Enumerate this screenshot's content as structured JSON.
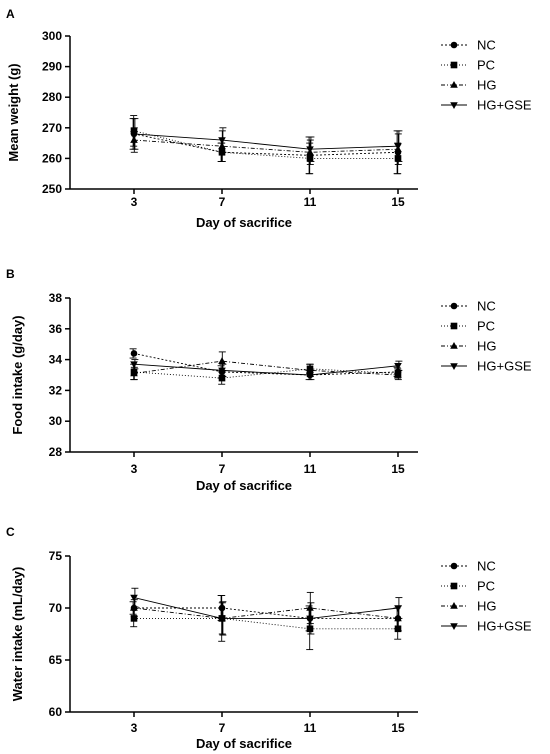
{
  "chart_data": [
    {
      "panel": "A",
      "type": "line",
      "xlabel": "Day of sacrifice",
      "ylabel": "Mean weight (g)",
      "ylim": [
        250,
        300
      ],
      "yticks": [
        250,
        260,
        270,
        280,
        290,
        300
      ],
      "x": [
        3,
        7,
        11,
        15
      ],
      "xtick_labels": [
        "3",
        "7",
        "11",
        "15"
      ],
      "legend_position": "right",
      "series": [
        {
          "name": "NC",
          "marker": "circle",
          "dash": "2,2",
          "values": [
            268,
            262,
            261,
            262
          ],
          "errors": [
            5,
            3,
            6,
            7
          ]
        },
        {
          "name": "PC",
          "marker": "square",
          "dash": "1,2",
          "values": [
            269,
            262,
            260,
            260
          ],
          "errors": [
            5,
            3,
            5,
            5
          ]
        },
        {
          "name": "HG",
          "marker": "triangle-up",
          "dash": "4,2,1,2",
          "values": [
            266,
            264,
            262,
            263
          ],
          "errors": [
            4,
            5,
            4,
            5
          ]
        },
        {
          "name": "HG+GSE",
          "marker": "triangle-down",
          "dash": "",
          "values": [
            268,
            266,
            263,
            264
          ],
          "errors": [
            5,
            4,
            4,
            5
          ]
        }
      ]
    },
    {
      "panel": "B",
      "type": "line",
      "xlabel": "Day of sacrifice",
      "ylabel": "Food intake (g/day)",
      "ylim": [
        28,
        38
      ],
      "yticks": [
        28,
        30,
        32,
        34,
        36,
        38
      ],
      "x": [
        3,
        7,
        11,
        15
      ],
      "xtick_labels": [
        "3",
        "7",
        "11",
        "15"
      ],
      "legend_position": "right",
      "series": [
        {
          "name": "NC",
          "marker": "circle",
          "dash": "2,2",
          "values": [
            34.4,
            33.2,
            33.0,
            33.2
          ],
          "errors": [
            0.3,
            0.4,
            0.3,
            0.3
          ]
        },
        {
          "name": "PC",
          "marker": "square",
          "dash": "1,2",
          "values": [
            33.2,
            32.8,
            33.4,
            33.1
          ],
          "errors": [
            0.5,
            0.4,
            0.3,
            0.3
          ]
        },
        {
          "name": "HG",
          "marker": "triangle-up",
          "dash": "4,2,1,2",
          "values": [
            33.1,
            33.9,
            33.3,
            33.0
          ],
          "errors": [
            0.4,
            0.6,
            0.4,
            0.3
          ]
        },
        {
          "name": "HG+GSE",
          "marker": "triangle-down",
          "dash": "",
          "values": [
            33.7,
            33.3,
            33.0,
            33.6
          ],
          "errors": [
            0.3,
            0.4,
            0.3,
            0.3
          ]
        }
      ]
    },
    {
      "panel": "C",
      "type": "line",
      "xlabel": "Day of sacrifice",
      "ylabel": "Water intake (mL/day)",
      "ylim": [
        60,
        75
      ],
      "yticks": [
        60,
        65,
        70,
        75
      ],
      "x": [
        3,
        7,
        11,
        15
      ],
      "xtick_labels": [
        "3",
        "7",
        "11",
        "15"
      ],
      "legend_position": "right",
      "series": [
        {
          "name": "NC",
          "marker": "circle",
          "dash": "2,2",
          "values": [
            70,
            70,
            69,
            69
          ],
          "errors": [
            0.6,
            1.2,
            1.2,
            1.0
          ]
        },
        {
          "name": "PC",
          "marker": "square",
          "dash": "1,2",
          "values": [
            69,
            69,
            68,
            68
          ],
          "errors": [
            0.8,
            2.2,
            2.0,
            1.0
          ]
        },
        {
          "name": "HG",
          "marker": "triangle-up",
          "dash": "4,2,1,2",
          "values": [
            70,
            69,
            70,
            69
          ],
          "errors": [
            0.8,
            1.5,
            1.5,
            1.2
          ]
        },
        {
          "name": "HG+GSE",
          "marker": "triangle-down",
          "dash": "",
          "values": [
            71,
            69,
            69,
            70
          ],
          "errors": [
            0.9,
            1.6,
            1.5,
            1.0
          ]
        }
      ]
    }
  ]
}
